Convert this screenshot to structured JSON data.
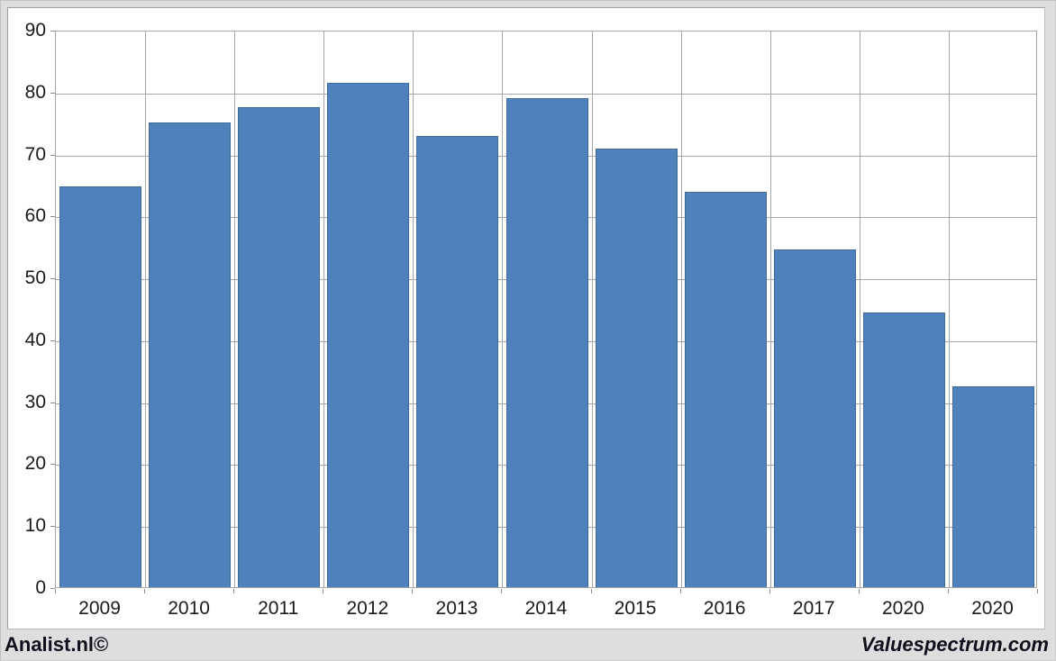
{
  "chart_data": {
    "type": "bar",
    "title": "",
    "xlabel": "",
    "ylabel": "",
    "categories": [
      "2009",
      "2010",
      "2011",
      "2012",
      "2013",
      "2014",
      "2015",
      "2016",
      "2017",
      "2020",
      "2020"
    ],
    "values": [
      64.7,
      75.0,
      77.5,
      81.4,
      72.8,
      79.0,
      70.8,
      63.8,
      54.5,
      44.3,
      32.4
    ],
    "ylim": [
      0,
      90
    ],
    "y_ticks": [
      0,
      10,
      20,
      30,
      40,
      50,
      60,
      70,
      80,
      90
    ],
    "grid": true,
    "legend": "none",
    "bar_color": "#4f81bd",
    "bar_border_color": "#3e6b99",
    "gridline_color": "#a6a6a6",
    "tick_color": "#8c8c8c",
    "label_color": "#1a1a1a",
    "plot_background": "#ffffff"
  },
  "footer": {
    "left_text": "Analist.nl©",
    "right_text": "Valuespectrum.com",
    "text_color": "#10101c",
    "background": "#dedede"
  }
}
